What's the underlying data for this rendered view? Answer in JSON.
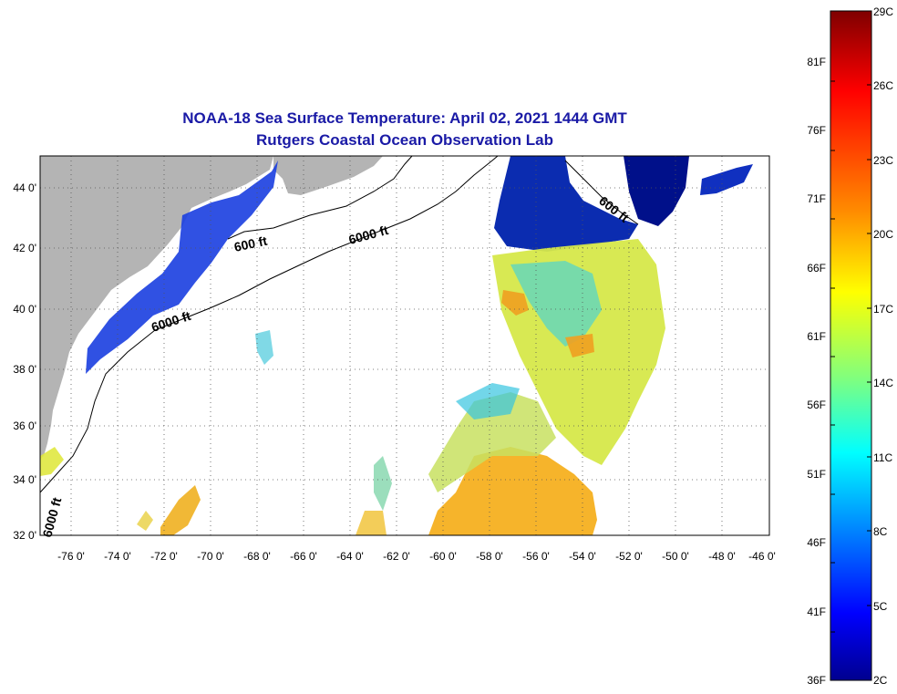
{
  "title": {
    "line1": "NOAA-18 Sea Surface Temperature:  April 02, 2021 1444 GMT",
    "line2": "Rutgers Coastal Ocean Observation Lab"
  },
  "map": {
    "lat_labels": [
      "44 0'",
      "42 0'",
      "40 0'",
      "38 0'",
      "36 0'",
      "34 0'",
      "32 0'"
    ],
    "lon_labels": [
      "-76 0'",
      "-74 0'",
      "-72 0'",
      "-70 0'",
      "-68 0'",
      "-66 0'",
      "-64 0'",
      "-62 0'",
      "-60 0'",
      "-58 0'",
      "-56 0'",
      "-54 0'",
      "-52 0'",
      "-50 0'",
      "-48 0'",
      "-46 0'"
    ],
    "contour_labels": [
      "600 ft",
      "6000 ft",
      "6000 ft",
      "600 ft",
      "6000 ft"
    ],
    "land_color": "#b4b4b4",
    "grid_style": "dotted"
  },
  "colorbar": {
    "f_labels": [
      "81F",
      "76F",
      "71F",
      "66F",
      "61F",
      "56F",
      "51F",
      "46F",
      "41F",
      "36F"
    ],
    "c_labels": [
      "29C",
      "26C",
      "23C",
      "20C",
      "17C",
      "14C",
      "11C",
      "8C",
      "5C",
      "2C"
    ],
    "colors": [
      "#7f0000",
      "#ff0000",
      "#ff8c00",
      "#ffff00",
      "#7fff7f",
      "#00ffff",
      "#0080ff",
      "#0000ff",
      "#00008f"
    ]
  }
}
